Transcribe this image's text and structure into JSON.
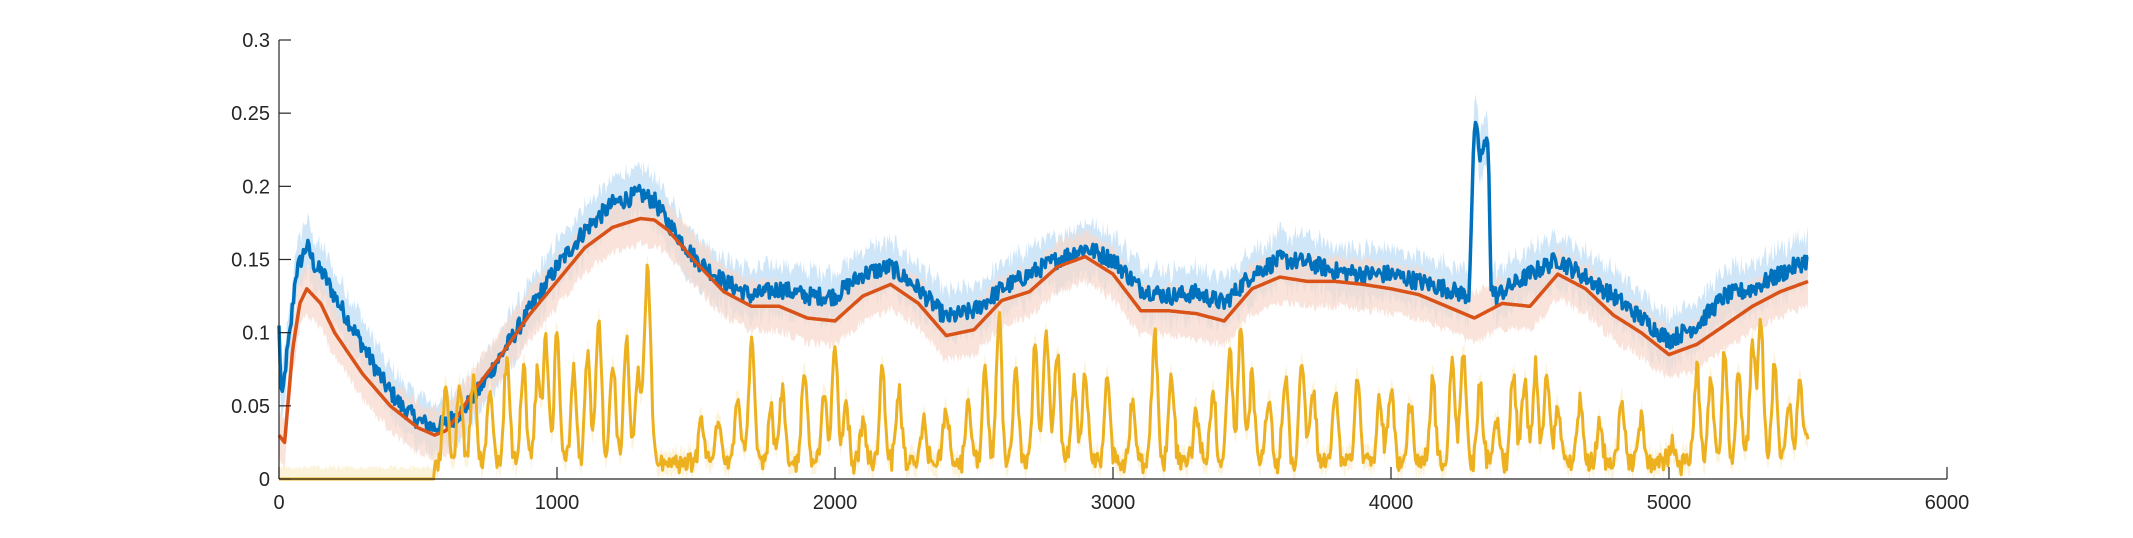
{
  "chart_data": {
    "type": "line",
    "title": "",
    "xlabel": "",
    "ylabel": "",
    "xlim": [
      0,
      6000
    ],
    "ylim": [
      0,
      0.3
    ],
    "grid": false,
    "x_ticks": [
      0,
      1000,
      2000,
      3000,
      4000,
      5000,
      6000
    ],
    "x_tick_labels": [
      "0",
      "1000",
      "2000",
      "3000",
      "4000",
      "5000",
      "6000"
    ],
    "y_ticks": [
      0,
      0.05,
      0.1,
      0.15,
      0.2,
      0.25,
      0.3
    ],
    "y_tick_labels": [
      "0",
      "0.05",
      "0.1",
      "0.15",
      "0.2",
      "0.25",
      "0.3"
    ],
    "series": [
      {
        "color": "#0072BD",
        "band_color": "#BFDDF5",
        "band_halfwidth": 0.017,
        "x": [
          0,
          10,
          25,
          40,
          60,
          80,
          100,
          130,
          160,
          200,
          260,
          320,
          380,
          440,
          500,
          560,
          600,
          650,
          700,
          750,
          800,
          900,
          1000,
          1100,
          1200,
          1300,
          1350,
          1400,
          1500,
          1600,
          1700,
          1800,
          1900,
          2000,
          2100,
          2200,
          2300,
          2400,
          2500,
          2600,
          2700,
          2800,
          2900,
          3000,
          3100,
          3200,
          3300,
          3400,
          3500,
          3600,
          3700,
          3800,
          3900,
          4000,
          4100,
          4200,
          4280,
          4300,
          4310,
          4320,
          4350,
          4360,
          4380,
          4400,
          4500,
          4600,
          4700,
          4800,
          4900,
          5000,
          5050,
          5100,
          5200,
          5300,
          5400,
          5500
        ],
        "y": [
          0.103,
          0.05,
          0.08,
          0.1,
          0.14,
          0.15,
          0.16,
          0.145,
          0.14,
          0.125,
          0.105,
          0.085,
          0.065,
          0.05,
          0.04,
          0.035,
          0.038,
          0.045,
          0.055,
          0.07,
          0.085,
          0.115,
          0.145,
          0.17,
          0.188,
          0.195,
          0.19,
          0.175,
          0.15,
          0.135,
          0.125,
          0.13,
          0.125,
          0.125,
          0.14,
          0.145,
          0.13,
          0.11,
          0.115,
          0.13,
          0.14,
          0.15,
          0.158,
          0.15,
          0.13,
          0.125,
          0.127,
          0.12,
          0.14,
          0.15,
          0.148,
          0.142,
          0.14,
          0.14,
          0.135,
          0.13,
          0.125,
          0.24,
          0.235,
          0.22,
          0.232,
          0.13,
          0.125,
          0.128,
          0.14,
          0.15,
          0.138,
          0.125,
          0.11,
          0.095,
          0.1,
          0.105,
          0.125,
          0.13,
          0.14,
          0.15
        ]
      },
      {
        "color": "#D95319",
        "band_color": "#F7D9CE",
        "band_halfwidth": 0.017,
        "x": [
          0,
          20,
          50,
          75,
          100,
          150,
          200,
          300,
          400,
          500,
          560,
          600,
          650,
          700,
          800,
          900,
          1000,
          1100,
          1200,
          1300,
          1350,
          1400,
          1500,
          1600,
          1700,
          1800,
          1900,
          2000,
          2100,
          2200,
          2300,
          2400,
          2500,
          2600,
          2700,
          2800,
          2900,
          3000,
          3100,
          3200,
          3300,
          3400,
          3500,
          3600,
          3700,
          3800,
          3900,
          4000,
          4100,
          4200,
          4300,
          4400,
          4500,
          4600,
          4700,
          4800,
          4900,
          5000,
          5100,
          5200,
          5300,
          5400,
          5500
        ],
        "y": [
          0.03,
          0.025,
          0.09,
          0.12,
          0.13,
          0.12,
          0.1,
          0.072,
          0.05,
          0.035,
          0.03,
          0.033,
          0.045,
          0.06,
          0.085,
          0.112,
          0.135,
          0.158,
          0.172,
          0.178,
          0.177,
          0.17,
          0.148,
          0.128,
          0.118,
          0.118,
          0.11,
          0.108,
          0.125,
          0.133,
          0.12,
          0.098,
          0.102,
          0.122,
          0.128,
          0.145,
          0.152,
          0.14,
          0.115,
          0.115,
          0.113,
          0.108,
          0.13,
          0.138,
          0.135,
          0.135,
          0.133,
          0.13,
          0.126,
          0.118,
          0.11,
          0.12,
          0.118,
          0.14,
          0.13,
          0.112,
          0.1,
          0.085,
          0.092,
          0.105,
          0.118,
          0.128,
          0.135
        ]
      },
      {
        "color": "#EDB120",
        "band_color": "#FBEFCF",
        "band_halfwidth": 0.008,
        "baseline": 0.0,
        "onset_x": 560,
        "peaks": [
          [
            600,
            0.055
          ],
          [
            650,
            0.05
          ],
          [
            700,
            0.06
          ],
          [
            760,
            0.05
          ],
          [
            820,
            0.072
          ],
          [
            880,
            0.065
          ],
          [
            930,
            0.06
          ],
          [
            960,
            0.082
          ],
          [
            1000,
            0.09
          ],
          [
            1060,
            0.065
          ],
          [
            1110,
            0.075
          ],
          [
            1150,
            0.1
          ],
          [
            1200,
            0.072
          ],
          [
            1250,
            0.082
          ],
          [
            1290,
            0.06
          ],
          [
            1320,
            0.07
          ],
          [
            1330,
            0.082
          ],
          [
            1520,
            0.03
          ],
          [
            1580,
            0.03
          ],
          [
            1650,
            0.045
          ],
          [
            1700,
            0.085
          ],
          [
            1770,
            0.035
          ],
          [
            1810,
            0.05
          ],
          [
            1890,
            0.062
          ],
          [
            1960,
            0.045
          ],
          [
            2000,
            0.08
          ],
          [
            2040,
            0.04
          ],
          [
            2100,
            0.025
          ],
          [
            2170,
            0.065
          ],
          [
            2230,
            0.048
          ],
          [
            2320,
            0.03
          ],
          [
            2400,
            0.04
          ],
          [
            2480,
            0.045
          ],
          [
            2540,
            0.065
          ],
          [
            2590,
            0.098
          ],
          [
            2650,
            0.06
          ],
          [
            2720,
            0.08
          ],
          [
            2760,
            0.09
          ],
          [
            2800,
            0.075
          ],
          [
            2860,
            0.055
          ],
          [
            2900,
            0.06
          ],
          [
            2980,
            0.06
          ],
          [
            3070,
            0.04
          ],
          [
            3150,
            0.09
          ],
          [
            3210,
            0.06
          ],
          [
            3300,
            0.035
          ],
          [
            3360,
            0.05
          ],
          [
            3420,
            0.08
          ],
          [
            3460,
            0.095
          ],
          [
            3500,
            0.06
          ],
          [
            3560,
            0.045
          ],
          [
            3620,
            0.06
          ],
          [
            3680,
            0.07
          ],
          [
            3720,
            0.05
          ],
          [
            3800,
            0.05
          ],
          [
            3880,
            0.06
          ],
          [
            3960,
            0.045
          ],
          [
            4000,
            0.05
          ],
          [
            4070,
            0.04
          ],
          [
            4150,
            0.055
          ],
          [
            4220,
            0.07
          ],
          [
            4260,
            0.075
          ],
          [
            4320,
            0.05
          ],
          [
            4380,
            0.03
          ],
          [
            4440,
            0.06
          ],
          [
            4480,
            0.055
          ],
          [
            4520,
            0.065
          ],
          [
            4560,
            0.062
          ],
          [
            4600,
            0.04
          ],
          [
            4680,
            0.04
          ],
          [
            4750,
            0.025
          ],
          [
            4830,
            0.045
          ],
          [
            4900,
            0.03
          ],
          [
            5010,
            0.015
          ],
          [
            5100,
            0.065
          ],
          [
            5150,
            0.06
          ],
          [
            5200,
            0.075
          ],
          [
            5250,
            0.06
          ],
          [
            5300,
            0.08
          ],
          [
            5330,
            0.095
          ],
          [
            5380,
            0.065
          ],
          [
            5430,
            0.04
          ],
          [
            5470,
            0.055
          ],
          [
            5500,
            0.015
          ]
        ]
      }
    ]
  }
}
